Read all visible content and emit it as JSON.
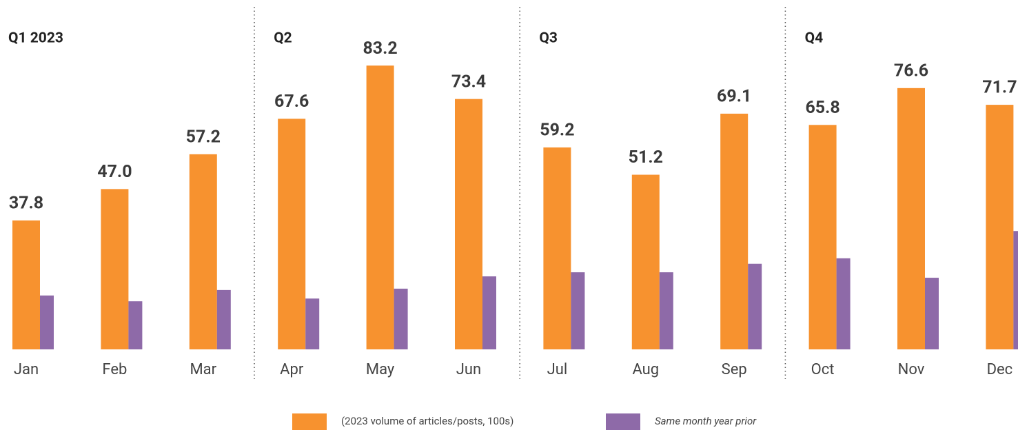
{
  "chart_data": {
    "type": "bar",
    "annotations": [
      "Q1 2023",
      "Q2",
      "Q3",
      "Q4"
    ],
    "categories": [
      "Jan",
      "Feb",
      "Mar",
      "Apr",
      "May",
      "Jun",
      "Jul",
      "Aug",
      "Sep",
      "Oct",
      "Nov",
      "Dec"
    ],
    "series": [
      {
        "name": "(2023 volume of articles/posts, 100s)",
        "color": "#f7922f",
        "values": [
          37.8,
          47.0,
          57.2,
          67.6,
          83.2,
          73.4,
          59.2,
          51.2,
          69.1,
          65.8,
          76.6,
          71.7
        ],
        "value_labels": [
          "37.8",
          "47.0",
          "57.2",
          "67.6",
          "83.2",
          "73.4",
          "59.2",
          "51.2",
          "69.1",
          "65.8",
          "76.6",
          "71.7"
        ]
      },
      {
        "name": "Same month year prior",
        "color": "#8e6aa8",
        "values": [
          15.8,
          14.1,
          17.4,
          14.9,
          17.8,
          21.4,
          22.6,
          22.6,
          25.1,
          26.7,
          21.0,
          34.7
        ]
      }
    ]
  }
}
